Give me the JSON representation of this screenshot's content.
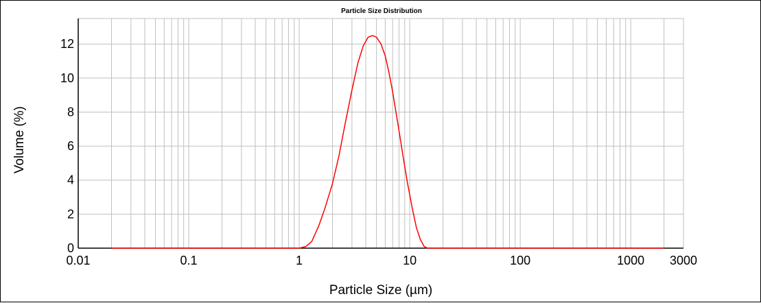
{
  "chart_data": {
    "type": "line",
    "title": "Particle Size Distribution",
    "xlabel": "Particle Size (µm)",
    "ylabel": "Volume (%)",
    "x_scale": "log",
    "xlim": [
      0.01,
      3000
    ],
    "ylim": [
      0,
      13.5
    ],
    "x_ticks": [
      0.01,
      0.1,
      1,
      10,
      100,
      1000,
      3000
    ],
    "x_tick_labels": [
      "0.01",
      "0.1",
      "1",
      "10",
      "100",
      "1000",
      "3000"
    ],
    "y_ticks": [
      0,
      2,
      4,
      6,
      8,
      10,
      12
    ],
    "y_tick_labels": [
      "0",
      "2",
      "4",
      "6",
      "8",
      "10",
      "12"
    ],
    "grid": true,
    "colors": {
      "series": "#ff0000",
      "grid": "#bfbfbf",
      "axis": "#000000"
    },
    "series": [
      {
        "x": [
          0.02,
          0.1,
          0.5,
          1.0,
          1.15,
          1.3,
          1.5,
          1.7,
          2.0,
          2.3,
          2.6,
          3.0,
          3.4,
          3.8,
          4.2,
          4.6,
          5.0,
          5.5,
          6.0,
          6.5,
          7.0,
          7.5,
          8.0,
          8.7,
          9.5,
          10.5,
          11.5,
          12.5,
          13.5,
          14.5,
          20,
          100,
          1000,
          2000
        ],
        "y": [
          0,
          0,
          0,
          0,
          0.1,
          0.4,
          1.3,
          2.3,
          3.8,
          5.5,
          7.3,
          9.3,
          10.9,
          11.9,
          12.4,
          12.5,
          12.4,
          12.0,
          11.3,
          10.3,
          9.2,
          8.0,
          6.9,
          5.4,
          3.9,
          2.4,
          1.2,
          0.5,
          0.1,
          0,
          0,
          0,
          0,
          0
        ]
      }
    ]
  }
}
